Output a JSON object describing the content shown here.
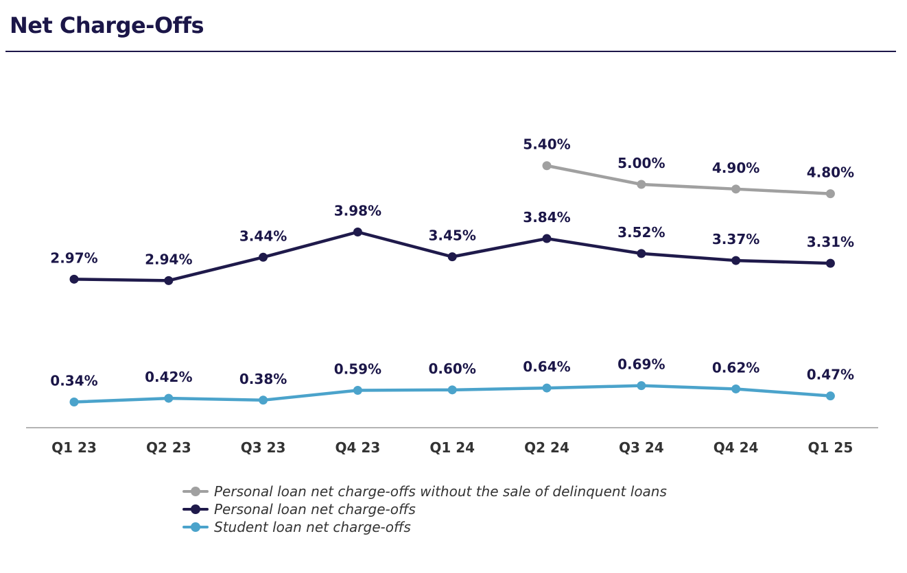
{
  "header": {
    "title": "Net Charge-Offs"
  },
  "chart_data": {
    "type": "line",
    "title": "Net Charge-Offs",
    "categories": [
      "Q1 23",
      "Q2 23",
      "Q3 23",
      "Q4 23",
      "Q1 24",
      "Q2 24",
      "Q3 24",
      "Q4 24",
      "Q1 25"
    ],
    "series": [
      {
        "name": "Personal loan net charge-offs without the sale of delinquent loans",
        "color": "#a0a0a0",
        "values": [
          null,
          null,
          null,
          null,
          null,
          5.4,
          5.0,
          4.9,
          4.8
        ],
        "labels": [
          null,
          null,
          null,
          null,
          null,
          "5.40%",
          "5.00%",
          "4.90%",
          "4.80%"
        ]
      },
      {
        "name": "Personal loan net charge-offs",
        "color": "#1f1a4b",
        "values": [
          2.97,
          2.94,
          3.44,
          3.98,
          3.45,
          3.84,
          3.52,
          3.37,
          3.31
        ],
        "labels": [
          "2.97%",
          "2.94%",
          "3.44%",
          "3.98%",
          "3.45%",
          "3.84%",
          "3.52%",
          "3.37%",
          "3.31%"
        ]
      },
      {
        "name": "Student loan net charge-offs",
        "color": "#4ba3cb",
        "values": [
          0.34,
          0.42,
          0.38,
          0.59,
          0.6,
          0.64,
          0.69,
          0.62,
          0.47
        ],
        "labels": [
          "0.34%",
          "0.42%",
          "0.38%",
          "0.59%",
          "0.60%",
          "0.64%",
          "0.69%",
          "0.62%",
          "0.47%"
        ]
      }
    ],
    "ylim": [
      0,
      6
    ],
    "xlabel": "",
    "ylabel": "",
    "grid": false,
    "legend_position": "bottom-center"
  }
}
